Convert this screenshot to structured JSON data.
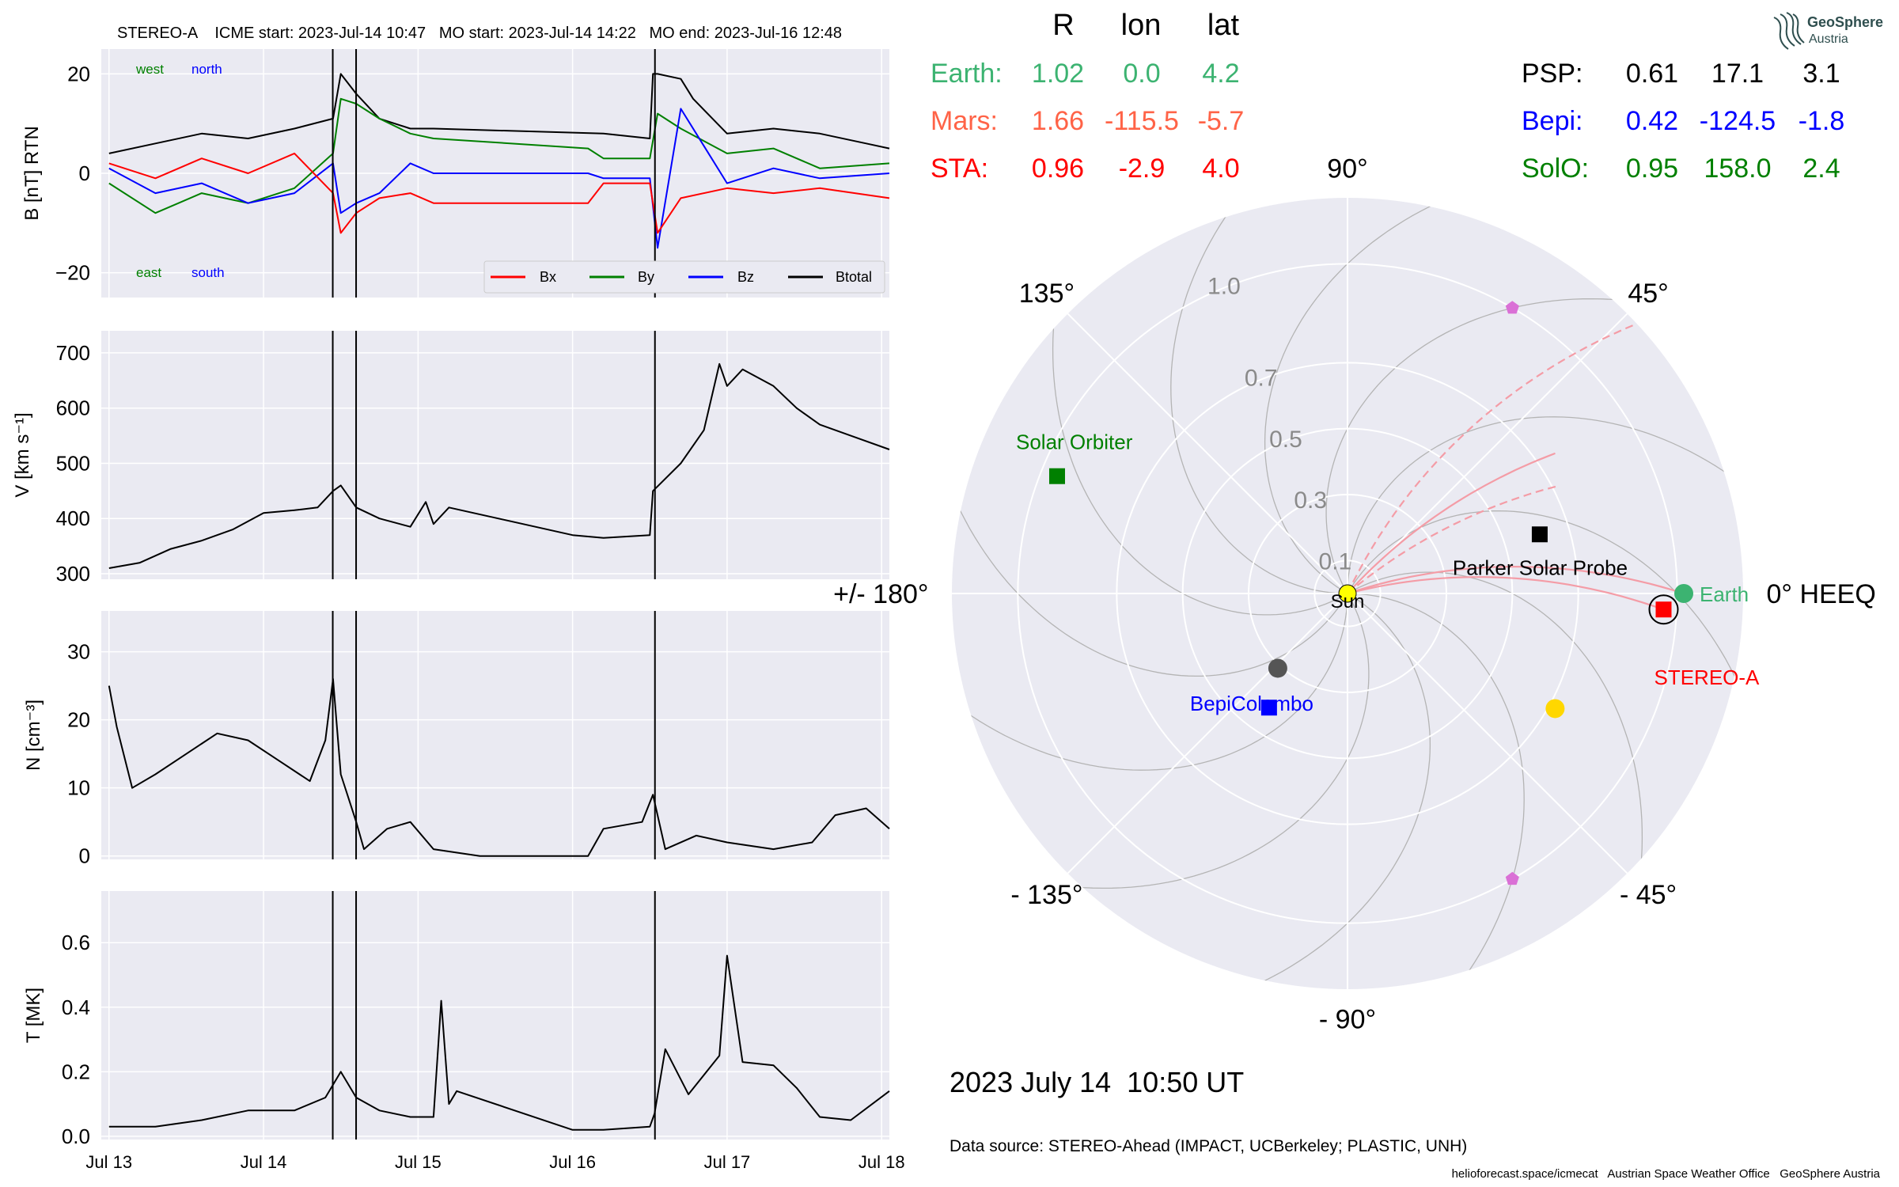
{
  "header": {
    "title": "STEREO-A    ICME start: 2023-Jul-14 10:47   MO start: 2023-Jul-14 14:22   MO end: 2023-Jul-16 12:48"
  },
  "positions": {
    "col_headers": [
      "R",
      "lon",
      "lat"
    ],
    "rows": [
      {
        "label": "Earth:",
        "r": "1.02",
        "lon": "0.0",
        "lat": "4.2",
        "color": "#3cb371"
      },
      {
        "label": "Mars:",
        "r": "1.66",
        "lon": "-115.5",
        "lat": "-5.7",
        "color": "#ff6347"
      },
      {
        "label": "STA:",
        "r": "0.96",
        "lon": "-2.9",
        "lat": "4.0",
        "color": "#ff0000"
      },
      {
        "label": "PSP:",
        "r": "0.61",
        "lon": "17.1",
        "lat": "3.1",
        "color": "#000000"
      },
      {
        "label": "Bepi:",
        "r": "0.42",
        "lon": "-124.5",
        "lat": "-1.8",
        "color": "#0000ff"
      },
      {
        "label": "SolO:",
        "r": "0.95",
        "lon": "158.0",
        "lat": "2.4",
        "color": "#008000"
      }
    ]
  },
  "logo": {
    "line1": "GeoSphere",
    "line2": "Austria"
  },
  "timestamp": "2023 July 14  10:50 UT",
  "datasource": "Data source: STEREO-Ahead (IMPACT, UCBerkeley; PLASTIC, UNH)",
  "credits": "helioforecast.space/icmecat   Austrian Space Weather Office   GeoSphere Austria",
  "colors": {
    "bx": "#ff0000",
    "by": "#008000",
    "bz": "#0000ff",
    "btotal": "#000000",
    "panel_bg": "#eaeaf2"
  },
  "chart_data": [
    {
      "type": "line",
      "panel": "magnetic_field",
      "ylabel": "B [nT] RTN",
      "ylim": [
        -25,
        25
      ],
      "yticks": [
        "20",
        "0",
        "−20"
      ],
      "xlim_days": [
        12.95,
        18.05
      ],
      "xtick_labels": [
        "Jul 13",
        "Jul 14",
        "Jul 15",
        "Jul 16",
        "Jul 17",
        "Jul 18"
      ],
      "event_lines_days": [
        14.448,
        14.599,
        16.533
      ],
      "annotations": {
        "west": "west",
        "north": "north",
        "east": "east",
        "south": "south"
      },
      "legend": [
        "Bx",
        "By",
        "Bz",
        "Btotal"
      ],
      "legend_position": "lower right",
      "series": [
        {
          "name": "Btotal",
          "x": [
            13.0,
            13.3,
            13.6,
            13.9,
            14.2,
            14.45,
            14.5,
            14.6,
            14.75,
            14.95,
            15.1,
            16.2,
            16.5,
            16.52,
            16.55,
            16.7,
            16.78,
            17.0,
            17.3,
            17.6,
            17.9,
            18.05
          ],
          "y": [
            4,
            6,
            8,
            7,
            9,
            11,
            20,
            16,
            11,
            9,
            9,
            8,
            7,
            20,
            20,
            19,
            15,
            8,
            9,
            8,
            6,
            5
          ]
        },
        {
          "name": "Bx",
          "x": [
            13.0,
            13.3,
            13.6,
            13.9,
            14.2,
            14.45,
            14.5,
            14.6,
            14.75,
            14.95,
            15.1,
            16.1,
            16.2,
            16.5,
            16.55,
            16.7,
            17.0,
            17.3,
            17.6,
            18.05
          ],
          "y": [
            2,
            -1,
            3,
            0,
            4,
            -4,
            -12,
            -8,
            -5,
            -4,
            -6,
            -6,
            -2,
            -2,
            -12,
            -5,
            -3,
            -4,
            -3,
            -5
          ]
        },
        {
          "name": "By",
          "x": [
            13.0,
            13.3,
            13.6,
            13.9,
            14.2,
            14.45,
            14.5,
            14.6,
            14.75,
            14.95,
            15.1,
            16.1,
            16.2,
            16.5,
            16.55,
            16.7,
            17.0,
            17.3,
            17.6,
            18.05
          ],
          "y": [
            -2,
            -8,
            -4,
            -6,
            -3,
            4,
            15,
            14,
            11,
            8,
            7,
            5,
            3,
            3,
            12,
            9,
            4,
            5,
            1,
            2
          ]
        },
        {
          "name": "Bz",
          "x": [
            13.0,
            13.3,
            13.6,
            13.9,
            14.2,
            14.45,
            14.5,
            14.6,
            14.75,
            14.95,
            15.1,
            16.1,
            16.2,
            16.5,
            16.55,
            16.7,
            17.0,
            17.3,
            17.6,
            18.05
          ],
          "y": [
            1,
            -4,
            -2,
            -6,
            -4,
            2,
            -8,
            -6,
            -4,
            2,
            0,
            0,
            -1,
            -1,
            -15,
            13,
            -2,
            1,
            -1,
            0
          ]
        }
      ]
    },
    {
      "type": "line",
      "panel": "speed",
      "ylabel": "V [km s⁻¹]",
      "ylim": [
        290,
        740
      ],
      "yticks": [
        300,
        400,
        500,
        600,
        700
      ],
      "xlim_days": [
        12.95,
        18.05
      ],
      "event_lines_days": [
        14.448,
        14.599,
        16.533
      ],
      "series": [
        {
          "name": "V",
          "x": [
            13.0,
            13.2,
            13.4,
            13.6,
            13.8,
            14.0,
            14.2,
            14.35,
            14.45,
            14.5,
            14.6,
            14.75,
            14.95,
            15.05,
            15.1,
            15.2,
            16.0,
            16.2,
            16.5,
            16.52,
            16.7,
            16.85,
            16.95,
            17.0,
            17.1,
            17.3,
            17.45,
            17.6,
            17.8,
            18.05
          ],
          "y": [
            310,
            320,
            345,
            360,
            380,
            410,
            415,
            420,
            450,
            460,
            420,
            400,
            385,
            430,
            390,
            420,
            370,
            365,
            370,
            450,
            500,
            560,
            680,
            640,
            670,
            640,
            600,
            570,
            550,
            525
          ]
        }
      ]
    },
    {
      "type": "line",
      "panel": "density",
      "ylabel": "N [cm⁻³]",
      "ylim": [
        -0.5,
        36
      ],
      "yticks": [
        0,
        10,
        20,
        30
      ],
      "xlim_days": [
        12.95,
        18.05
      ],
      "event_lines_days": [
        14.448,
        14.599,
        16.533
      ],
      "series": [
        {
          "name": "N",
          "x": [
            13.0,
            13.05,
            13.15,
            13.3,
            13.5,
            13.7,
            13.9,
            14.1,
            14.3,
            14.4,
            14.45,
            14.5,
            14.6,
            14.65,
            14.8,
            14.95,
            15.1,
            15.4,
            16.1,
            16.2,
            16.45,
            16.52,
            16.6,
            16.8,
            17.0,
            17.3,
            17.55,
            17.7,
            17.9,
            18.05
          ],
          "y": [
            25,
            19,
            10,
            12,
            15,
            18,
            17,
            14,
            11,
            17,
            26,
            12,
            5,
            1,
            4,
            5,
            1,
            0,
            0,
            4,
            5,
            9,
            1,
            3,
            2,
            1,
            2,
            6,
            7,
            4
          ]
        }
      ]
    },
    {
      "type": "line",
      "panel": "temperature",
      "ylabel": "T [MK]",
      "ylim": [
        -0.01,
        0.76
      ],
      "yticks": [
        "0.0",
        "0.2",
        "0.4",
        "0.6"
      ],
      "xlim_days": [
        12.95,
        18.05
      ],
      "xtick_labels": [
        "Jul 13",
        "Jul 14",
        "Jul 15",
        "Jul 16",
        "Jul 17",
        "Jul 18"
      ],
      "event_lines_days": [
        14.448,
        14.599,
        16.533
      ],
      "series": [
        {
          "name": "T",
          "x": [
            13.0,
            13.3,
            13.6,
            13.9,
            14.2,
            14.4,
            14.5,
            14.6,
            14.75,
            14.95,
            15.1,
            15.15,
            15.2,
            15.25,
            16.0,
            16.2,
            16.5,
            16.53,
            16.6,
            16.75,
            16.95,
            17.0,
            17.1,
            17.3,
            17.45,
            17.6,
            17.8,
            18.05
          ],
          "y": [
            0.03,
            0.03,
            0.05,
            0.08,
            0.08,
            0.12,
            0.2,
            0.12,
            0.08,
            0.06,
            0.06,
            0.42,
            0.1,
            0.14,
            0.02,
            0.02,
            0.03,
            0.07,
            0.27,
            0.13,
            0.25,
            0.56,
            0.23,
            0.22,
            0.15,
            0.06,
            0.05,
            0.14
          ]
        }
      ]
    },
    {
      "type": "scatter",
      "panel": "polar_orbit_plot",
      "coordinate_system": "0° HEEQ",
      "angle_labels": [
        {
          "deg": 90,
          "text": "90°"
        },
        {
          "deg": 45,
          "text": "45°"
        },
        {
          "deg": 0,
          "text": "0° HEEQ"
        },
        {
          "deg": -45,
          "text": "- 45°"
        },
        {
          "deg": -90,
          "text": "- 90°"
        },
        {
          "deg": -135,
          "text": "- 135°"
        },
        {
          "deg": 180,
          "text": "+/- 180°"
        },
        {
          "deg": 135,
          "text": "135°"
        }
      ],
      "radial_ticks": [
        "0.1",
        "0.3",
        "0.5",
        "0.7",
        "1.0"
      ],
      "r_max": 1.2,
      "sun_label": "Sun",
      "objects": [
        {
          "name": "Earth",
          "r": 1.02,
          "lon": 0.0,
          "shape": "circle",
          "color": "#3cb371",
          "label": "Earth"
        },
        {
          "name": "STEREO-A",
          "r": 0.96,
          "lon": -2.9,
          "shape": "square",
          "color": "#ff0000",
          "label": "STEREO-A"
        },
        {
          "name": "Parker Solar Probe",
          "r": 0.61,
          "lon": 17.1,
          "shape": "square",
          "color": "#000000",
          "label": "Parker Solar Probe"
        },
        {
          "name": "BepiColombo",
          "r": 0.42,
          "lon": -124.5,
          "shape": "square",
          "color": "#0000ff",
          "label": "BepiColombo"
        },
        {
          "name": "Solar Orbiter",
          "r": 0.95,
          "lon": 158.0,
          "shape": "square",
          "color": "#008000",
          "label": "Solar Orbiter"
        },
        {
          "name": "Mercury",
          "r": 0.31,
          "lon": -133,
          "shape": "circle",
          "color": "#555555",
          "label": ""
        },
        {
          "name": "Venus",
          "r": 0.72,
          "lon": -29,
          "shape": "circle",
          "color": "#ffd700",
          "label": ""
        },
        {
          "name": "Sun",
          "r": 0.0,
          "lon": 0.0,
          "shape": "circle",
          "color": "#ffff00",
          "label": ""
        },
        {
          "name": "Sun-Earth L5",
          "r": 1.0,
          "lon": -60,
          "shape": "pentagon",
          "color": "#da70d6",
          "label": ""
        },
        {
          "name": "Sun-Earth L4",
          "r": 1.0,
          "lon": 60,
          "shape": "pentagon",
          "color": "#da70d6",
          "label": ""
        }
      ],
      "field_lines": [
        {
          "to": "Earth",
          "lon_end": 0.0,
          "r_end": 1.02,
          "style": "solid"
        },
        {
          "to": "STEREO-A",
          "lon_end": -2.9,
          "r_end": 0.96,
          "style": "solid"
        },
        {
          "to": "PSP-footpoint",
          "lon_end": 34,
          "r_end": 0.76,
          "style": "solid"
        },
        {
          "to": "dashed-1",
          "lon_end": 27,
          "r_end": 0.72,
          "style": "dashed"
        },
        {
          "to": "dashed-2",
          "lon_end": 43,
          "r_end": 1.2,
          "style": "dashed"
        }
      ]
    }
  ]
}
